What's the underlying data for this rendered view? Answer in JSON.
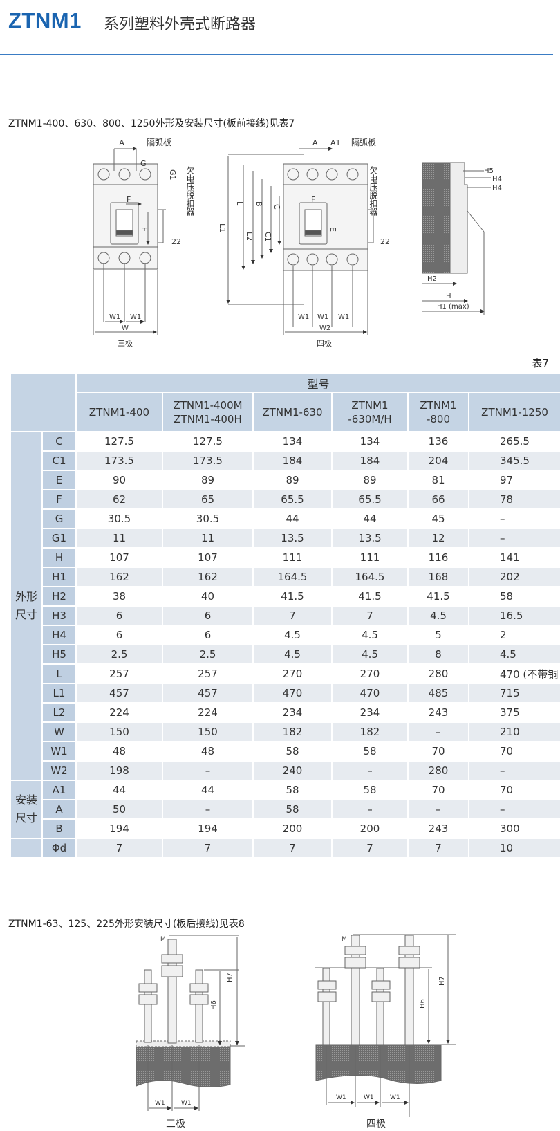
{
  "header": {
    "brand": "ZTNM1",
    "title": "系列塑料外壳式断路器"
  },
  "section1": {
    "caption": "ZTNM1-400、630、800、1250外形及安装尺寸(板前接线)见表7",
    "diagram_labels": {
      "arc_barrier": "隔弧板",
      "undervoltage_release": "欠电压脱扣器",
      "three_pole": "三极",
      "four_pole": "四极",
      "A": "A",
      "A1": "A1",
      "G": "G",
      "G1": "G1",
      "E": "E",
      "F": "F",
      "dim22": "22",
      "W": "W",
      "W1": "W1",
      "W2": "W2",
      "L1": "L1",
      "L": "L",
      "L2": "L2",
      "B": "B",
      "C1": "C1",
      "C": "C",
      "H5": "H5",
      "H4": "H4",
      "H2": "H2",
      "H": "H",
      "H1max": "H1 (max)"
    },
    "table_label": "表7"
  },
  "table7": {
    "model_header": "型号",
    "columns": [
      "ZTNM1-400",
      "ZTNM1-400M\nZTNM1-400H",
      "ZTNM1-630",
      "ZTNM1\n-630M/H",
      "ZTNM1\n-800",
      "ZTNM1-1250"
    ],
    "groups": [
      {
        "label": "外形\n尺寸",
        "rows": [
          {
            "param": "C",
            "values": [
              "127.5",
              "127.5",
              "134",
              "134",
              "136",
              "265.5"
            ]
          },
          {
            "param": "C1",
            "values": [
              "173.5",
              "173.5",
              "184",
              "184",
              "204",
              "345.5"
            ]
          },
          {
            "param": "E",
            "values": [
              "90",
              "89",
              "89",
              "89",
              "81",
              "97"
            ]
          },
          {
            "param": "F",
            "values": [
              "62",
              "65",
              "65.5",
              "65.5",
              "66",
              "78"
            ]
          },
          {
            "param": "G",
            "values": [
              "30.5",
              "30.5",
              "44",
              "44",
              "45",
              "–"
            ]
          },
          {
            "param": "G1",
            "values": [
              "11",
              "11",
              "13.5",
              "13.5",
              "12",
              "–"
            ]
          },
          {
            "param": "H",
            "values": [
              "107",
              "107",
              "111",
              "111",
              "116",
              "141"
            ]
          },
          {
            "param": "H1",
            "values": [
              "162",
              "162",
              "164.5",
              "164.5",
              "168",
              "202"
            ]
          },
          {
            "param": "H2",
            "values": [
              "38",
              "40",
              "41.5",
              "41.5",
              "41.5",
              "58"
            ]
          },
          {
            "param": "H3",
            "values": [
              "6",
              "6",
              "7",
              "7",
              "4.5",
              "16.5"
            ]
          },
          {
            "param": "H4",
            "values": [
              "6",
              "6",
              "4.5",
              "4.5",
              "5",
              "2"
            ]
          },
          {
            "param": "H5",
            "values": [
              "2.5",
              "2.5",
              "4.5",
              "4.5",
              "8",
              "4.5"
            ]
          },
          {
            "param": "L",
            "values": [
              "257",
              "257",
              "270",
              "270",
              "280",
              "470 (不带铜"
            ]
          },
          {
            "param": "L1",
            "values": [
              "457",
              "457",
              "470",
              "470",
              "485",
              "715"
            ]
          },
          {
            "param": "L2",
            "values": [
              "224",
              "224",
              "234",
              "234",
              "243",
              "375"
            ]
          },
          {
            "param": "W",
            "values": [
              "150",
              "150",
              "182",
              "182",
              "–",
              "210"
            ]
          },
          {
            "param": "W1",
            "values": [
              "48",
              "48",
              "58",
              "58",
              "70",
              "70"
            ]
          },
          {
            "param": "W2",
            "values": [
              "198",
              "–",
              "240",
              "–",
              "280",
              "–"
            ]
          }
        ]
      },
      {
        "label": "安装\n尺寸",
        "rows": [
          {
            "param": "A1",
            "values": [
              "44",
              "44",
              "58",
              "58",
              "70",
              "70"
            ]
          },
          {
            "param": "A",
            "values": [
              "50",
              "–",
              "58",
              "–",
              "–",
              "–"
            ]
          },
          {
            "param": "B",
            "values": [
              "194",
              "194",
              "200",
              "200",
              "243",
              "300"
            ]
          }
        ]
      },
      {
        "label": "",
        "rows": [
          {
            "param": "Φd",
            "values": [
              "7",
              "7",
              "7",
              "7",
              "7",
              "10"
            ]
          }
        ]
      }
    ]
  },
  "section2": {
    "caption": "ZTNM1-63、125、225外形安装尺寸(板后接线)见表8",
    "diagram_labels": {
      "M": "M",
      "H7": "H7",
      "H6": "H6",
      "W1": "W1",
      "three_pole": "三极",
      "four_pole": "四极"
    }
  },
  "colors": {
    "brand": "#1a64b0",
    "rule": "#3a7cc4",
    "table_header": "#c5d4e4",
    "row_alt": "#e7ebf0"
  }
}
